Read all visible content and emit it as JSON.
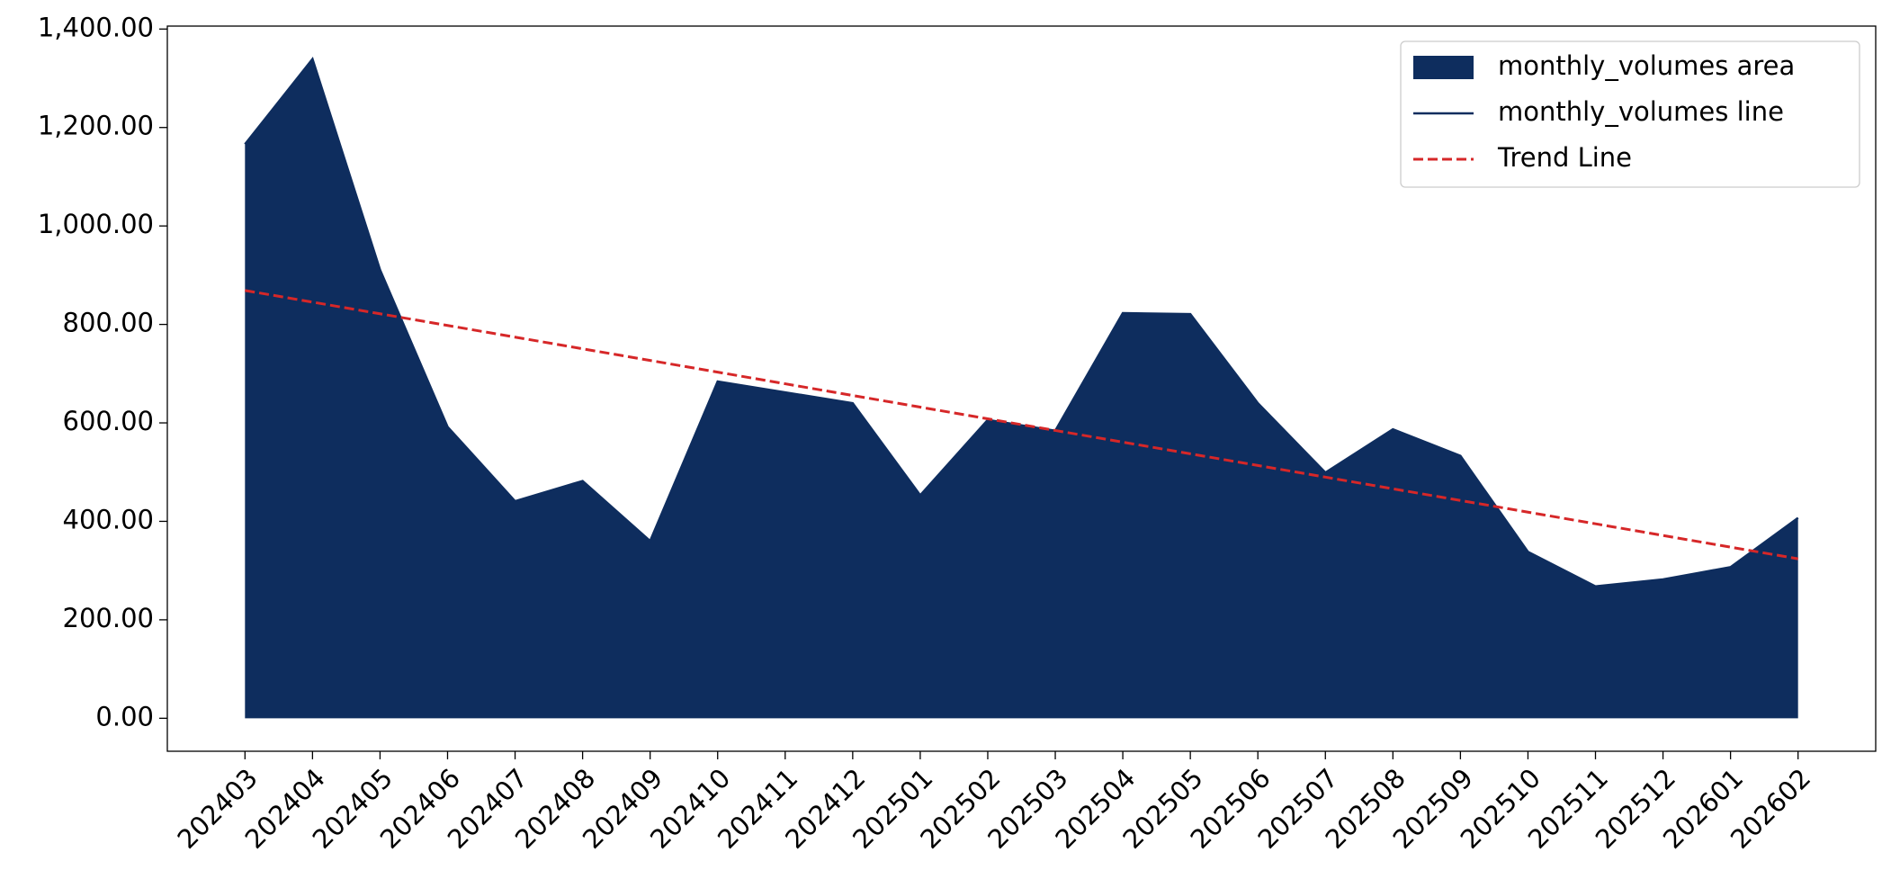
{
  "chart_data": {
    "type": "area",
    "categories": [
      "202403",
      "202404",
      "202405",
      "202406",
      "202407",
      "202408",
      "202409",
      "202410",
      "202411",
      "202412",
      "202501",
      "202502",
      "202503",
      "202504",
      "202505",
      "202506",
      "202507",
      "202508",
      "202509",
      "202510",
      "202511",
      "202512",
      "202601",
      "202602"
    ],
    "series": [
      {
        "name": "monthly_volumes area",
        "type": "area",
        "color": "#0e2d5e",
        "values": [
          1166,
          1339,
          911,
          592,
          441,
          482,
          360,
          684,
          662,
          640,
          453,
          606,
          584,
          823,
          821,
          640,
          499,
          587,
          533,
          338,
          268,
          282,
          307,
          407
        ]
      },
      {
        "name": "monthly_volumes line",
        "type": "line",
        "color": "#0e2d5e",
        "values": [
          1166,
          1339,
          911,
          592,
          441,
          482,
          360,
          684,
          662,
          640,
          453,
          606,
          584,
          823,
          821,
          640,
          499,
          587,
          533,
          338,
          268,
          282,
          307,
          407
        ]
      },
      {
        "name": "Trend Line",
        "type": "line",
        "dashed": true,
        "color": "#d62728",
        "values": [
          869,
          845.3,
          821.6,
          797.9,
          774.2,
          750.5,
          726.8,
          703.1,
          679.4,
          655.7,
          632.0,
          608.3,
          584.6,
          560.9,
          537.2,
          513.5,
          489.8,
          466.1,
          442.4,
          418.7,
          395.0,
          371.3,
          347.6,
          323.9
        ]
      }
    ],
    "ylim": [
      -67,
      1406
    ],
    "yticks": [
      {
        "value": 0,
        "label": "0.00"
      },
      {
        "value": 200,
        "label": "200.00"
      },
      {
        "value": 400,
        "label": "400.00"
      },
      {
        "value": 600,
        "label": "600.00"
      },
      {
        "value": 800,
        "label": "800.00"
      },
      {
        "value": 1000,
        "label": "1,000.00"
      },
      {
        "value": 1200,
        "label": "1,200.00"
      },
      {
        "value": 1400,
        "label": "1,400.00"
      }
    ],
    "legend": "upper right",
    "grid": false
  }
}
